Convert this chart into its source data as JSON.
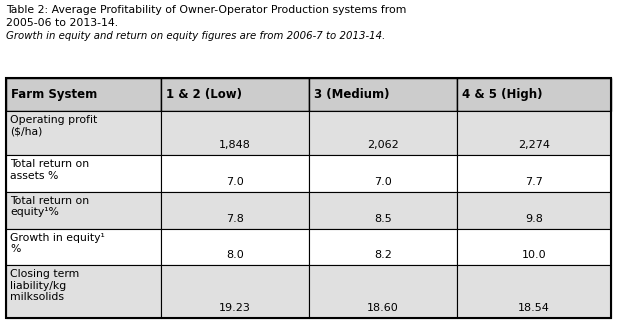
{
  "title_line1": "Table 2: Average Profitability of Owner-Operator Production systems from",
  "title_line2": "2005-06 to 2013-14.",
  "subtitle": "Growth in equity and return on equity figures are from 2006-7 to 2013-14.",
  "col_headers": [
    "Farm System",
    "1 & 2 (Low)",
    "3 (Medium)",
    "4 & 5 (High)"
  ],
  "rows": [
    {
      "label": "Operating profit\n($/ha)",
      "values": [
        "1,848",
        "2,062",
        "2,274"
      ]
    },
    {
      "label": "Total return on\nassets %",
      "values": [
        "7.0",
        "7.0",
        "7.7"
      ]
    },
    {
      "label": "Total return on\nequity¹%",
      "values": [
        "7.8",
        "8.5",
        "9.8"
      ]
    },
    {
      "label": "Growth in equity¹\n%",
      "values": [
        "8.0",
        "8.2",
        "10.0"
      ]
    },
    {
      "label": "Closing term\nliability/kg\nmilksolids",
      "values": [
        "19.23",
        "18.60",
        "18.54"
      ]
    }
  ],
  "header_bg": "#cccccc",
  "row_bg_odd": "#e0e0e0",
  "row_bg_even": "#ffffff",
  "border_color": "#000000",
  "text_color": "#000000",
  "bg_color": "#ffffff",
  "fig_width": 6.17,
  "fig_height": 3.26,
  "dpi": 100
}
